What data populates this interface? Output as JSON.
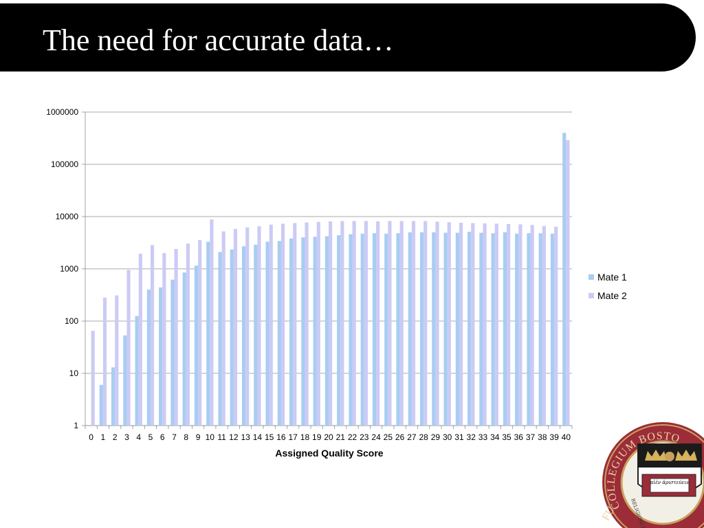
{
  "slide": {
    "title": "The need for accurate data…"
  },
  "seal": {
    "icon": "college-seal-icon",
    "text_top": "COLLEGIUM BOSTO",
    "text_left": "FU",
    "text_band": "RELIGIONI ET",
    "text_book": "αἰὲν ἀριστεύειν"
  },
  "chart_data": {
    "type": "bar",
    "scale": "log",
    "xlabel": "Assigned Quality Score",
    "ylabel": "",
    "ylim": [
      1,
      1000000
    ],
    "yticks": [
      "1",
      "10",
      "100",
      "1000",
      "10000",
      "100000",
      "1000000"
    ],
    "grid": true,
    "legend_position": "right",
    "categories": [
      "0",
      "1",
      "2",
      "3",
      "4",
      "5",
      "6",
      "7",
      "8",
      "9",
      "10",
      "11",
      "12",
      "13",
      "14",
      "15",
      "16",
      "17",
      "18",
      "19",
      "20",
      "21",
      "22",
      "23",
      "24",
      "25",
      "26",
      "27",
      "28",
      "29",
      "30",
      "31",
      "32",
      "33",
      "34",
      "35",
      "36",
      "37",
      "38",
      "39",
      "40"
    ],
    "series": [
      {
        "name": "Mate 1",
        "color": "#a8cdf2",
        "values": [
          null,
          6,
          13,
          53,
          125,
          400,
          440,
          620,
          850,
          1150,
          3300,
          2100,
          2350,
          2700,
          2900,
          3300,
          3400,
          3800,
          4000,
          4100,
          4200,
          4400,
          4600,
          4700,
          4800,
          4700,
          4800,
          5000,
          5000,
          5000,
          4900,
          4900,
          5100,
          4900,
          4800,
          5000,
          4700,
          4800,
          4800,
          4700,
          400000
        ]
      },
      {
        "name": "Mate 2",
        "color": "#cccbf5",
        "values": [
          65,
          280,
          310,
          950,
          1950,
          2850,
          2000,
          2400,
          3050,
          3550,
          8800,
          5200,
          5800,
          6200,
          6500,
          7000,
          7300,
          7500,
          7700,
          7900,
          8100,
          8200,
          8200,
          8200,
          8100,
          8200,
          8200,
          8200,
          8200,
          8000,
          7800,
          7600,
          7500,
          7400,
          7300,
          7200,
          7100,
          6900,
          6600,
          6400,
          290000
        ]
      }
    ]
  }
}
